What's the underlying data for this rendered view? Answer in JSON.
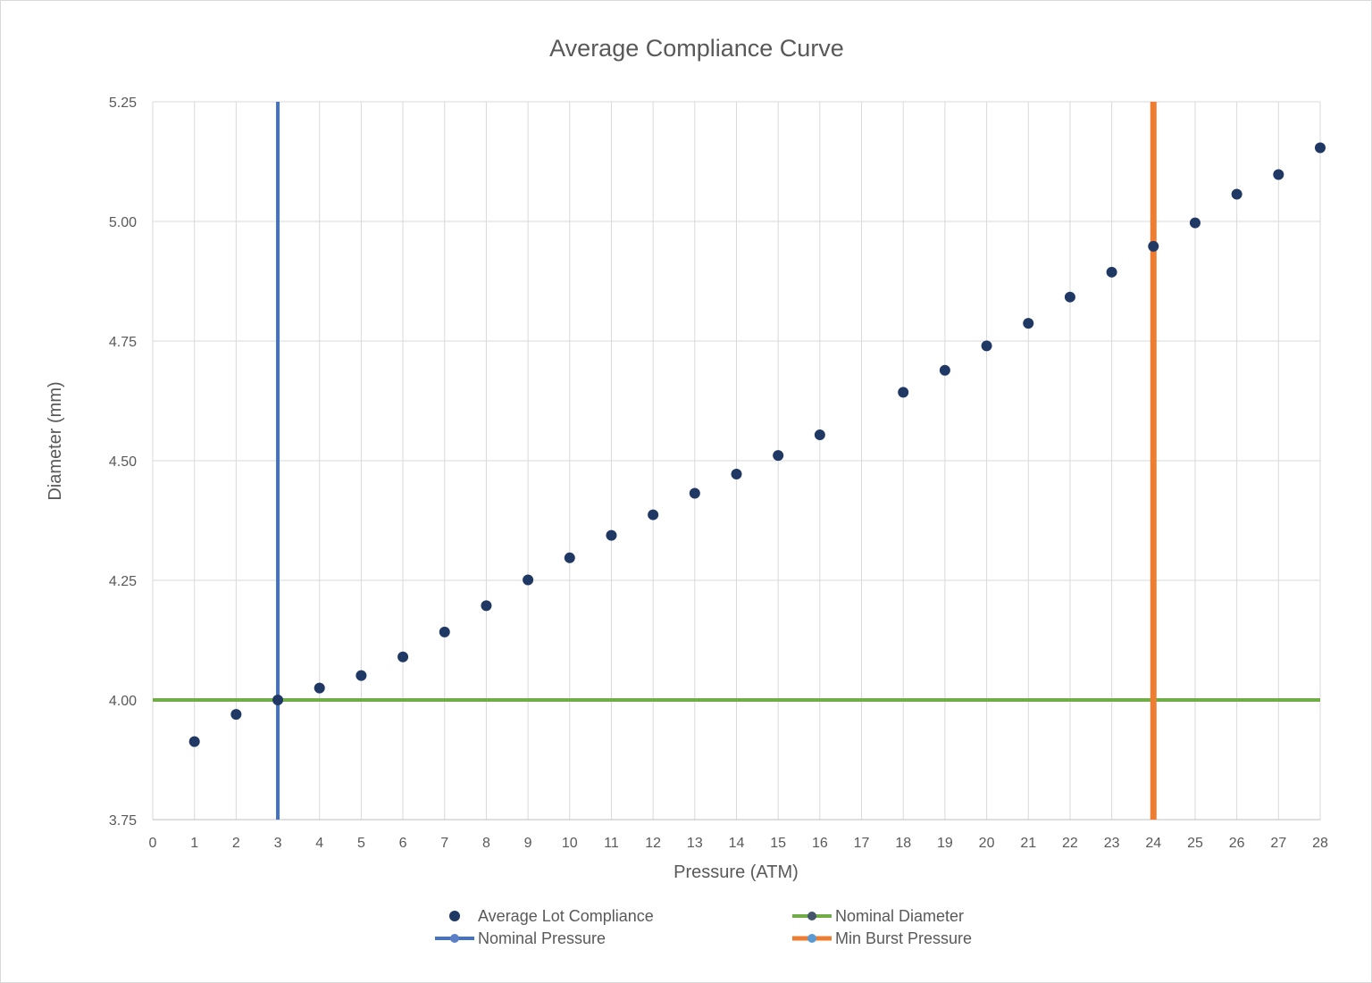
{
  "chart_data": {
    "type": "scatter",
    "title": "Average Compliance Curve",
    "xlabel": "Pressure (ATM)",
    "ylabel": "Diameter (mm)",
    "x_ticks": [
      "0",
      "1",
      "2",
      "3",
      "4",
      "5",
      "6",
      "7",
      "8",
      "9",
      "10",
      "11",
      "12",
      "13",
      "14",
      "15",
      "16",
      "17",
      "18",
      "19",
      "20",
      "21",
      "22",
      "23",
      "24",
      "25",
      "26",
      "27",
      "28"
    ],
    "y_ticks": [
      "3.75",
      "4.00",
      "4.25",
      "4.50",
      "4.75",
      "5.00",
      "5.25"
    ],
    "ylim": [
      3.75,
      5.25
    ],
    "grid": true,
    "legend_position": "bottom",
    "series": [
      {
        "name": "Average Lot Compliance",
        "kind": "points",
        "color": "#203864",
        "points": [
          [
            1,
            3.913
          ],
          [
            2,
            3.97
          ],
          [
            3,
            4.0
          ],
          [
            4,
            4.025
          ],
          [
            5,
            4.051
          ],
          [
            6,
            4.09
          ],
          [
            7,
            4.142
          ],
          [
            8,
            4.197
          ],
          [
            9,
            4.251
          ],
          [
            10,
            4.297
          ],
          [
            11,
            4.344
          ],
          [
            12,
            4.387
          ],
          [
            13,
            4.432
          ],
          [
            14,
            4.472
          ],
          [
            15,
            4.511
          ],
          [
            16,
            4.554
          ],
          [
            18,
            4.643
          ],
          [
            19,
            4.689
          ],
          [
            20,
            4.74
          ],
          [
            21,
            4.787
          ],
          [
            22,
            4.842
          ],
          [
            23,
            4.894
          ],
          [
            24,
            4.948
          ],
          [
            25,
            4.997
          ],
          [
            26,
            5.057
          ],
          [
            27,
            5.098
          ],
          [
            28,
            5.154
          ]
        ]
      },
      {
        "name": "Nominal Diameter",
        "kind": "hline",
        "color": "#70ad47",
        "marker_color": "#44546a",
        "value": 4.0
      },
      {
        "name": "Nominal Pressure",
        "kind": "vline",
        "color": "#4472c4",
        "marker_color": "#5b7fc7",
        "value": 3
      },
      {
        "name": "Min Burst Pressure",
        "kind": "vline",
        "color": "#ed7d31",
        "marker_color": "#5b9bd5",
        "value": 24
      }
    ]
  }
}
